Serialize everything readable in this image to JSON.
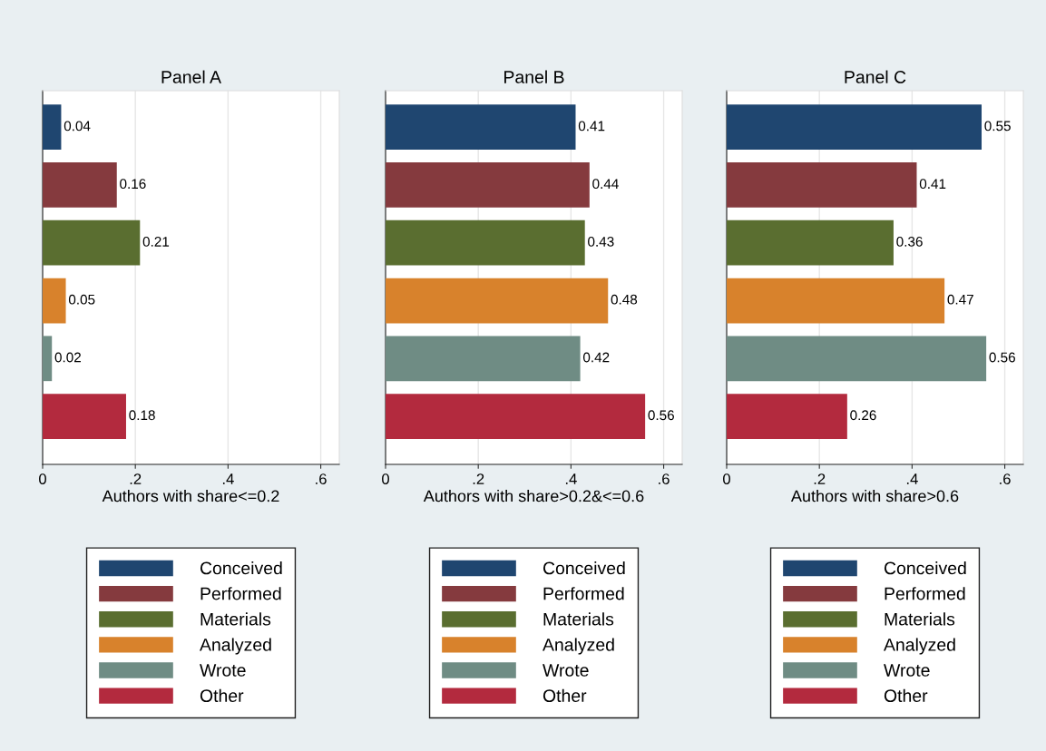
{
  "chart_data": [
    {
      "type": "bar",
      "title": "Panel A",
      "xlabel": "Authors with share<=0.2",
      "orientation": "horizontal",
      "categories": [
        null,
        null,
        null,
        null,
        null,
        null
      ],
      "series": [
        {
          "name": "Conceived",
          "color": "#1f4670",
          "values": [
            0.04,
            null,
            null,
            null,
            null,
            null
          ]
        },
        {
          "name": "Performed",
          "color": "#853a3e",
          "values": [
            null,
            0.16,
            null,
            null,
            null,
            null
          ]
        },
        {
          "name": "Materials",
          "color": "#5a6e30",
          "values": [
            null,
            null,
            0.21,
            null,
            null,
            null
          ]
        },
        {
          "name": "Analyzed",
          "color": "#d8822c",
          "values": [
            null,
            null,
            null,
            0.05,
            null,
            null
          ]
        },
        {
          "name": "Wrote",
          "color": "#6f8c84",
          "values": [
            null,
            null,
            null,
            null,
            0.02,
            null
          ]
        },
        {
          "name": "Other",
          "color": "#b32a3e",
          "values": [
            null,
            null,
            null,
            null,
            null,
            0.18
          ]
        }
      ],
      "xlim": [
        0,
        0.64
      ],
      "xticks": [
        0,
        {
          "value": 0.2,
          "label": ".2"
        },
        {
          "value": 0.4,
          "label": ".4"
        },
        {
          "value": 0.6,
          "label": ".6"
        }
      ],
      "data_labels": true,
      "grid": "x",
      "legend": "bottom",
      "tick_labels": "x"
    },
    {
      "type": "bar",
      "title": "Panel B",
      "xlabel": "Authors with share>0.2&<=0.6",
      "orientation": "horizontal",
      "categories": [
        null,
        null,
        null,
        null,
        null,
        null
      ],
      "series": [
        {
          "name": "Conceived",
          "color": "#1f4670",
          "values": [
            0.41,
            null,
            null,
            null,
            null,
            null
          ]
        },
        {
          "name": "Performed",
          "color": "#853a3e",
          "values": [
            null,
            0.44,
            null,
            null,
            null,
            null
          ]
        },
        {
          "name": "Materials",
          "color": "#5a6e30",
          "values": [
            null,
            null,
            0.43,
            null,
            null,
            null
          ]
        },
        {
          "name": "Analyzed",
          "color": "#d8822c",
          "values": [
            null,
            null,
            null,
            0.48,
            null,
            null
          ]
        },
        {
          "name": "Wrote",
          "color": "#6f8c84",
          "values": [
            null,
            null,
            null,
            null,
            0.42,
            null
          ]
        },
        {
          "name": "Other",
          "color": "#b32a3e",
          "values": [
            null,
            null,
            null,
            null,
            null,
            0.56
          ]
        }
      ],
      "xlim": [
        0,
        0.64
      ],
      "xticks": [
        0,
        {
          "value": 0.2,
          "label": ".2"
        },
        {
          "value": 0.4,
          "label": ".4"
        },
        {
          "value": 0.6,
          "label": ".6"
        }
      ],
      "data_labels": true,
      "grid": "x",
      "legend": "bottom",
      "tick_labels": "x"
    },
    {
      "type": "bar",
      "title": "Panel C",
      "xlabel": "Authors with share>0.6",
      "orientation": "horizontal",
      "categories": [
        null,
        null,
        null,
        null,
        null,
        null
      ],
      "series": [
        {
          "name": "Conceived",
          "color": "#1f4670",
          "values": [
            0.55,
            null,
            null,
            null,
            null,
            null
          ]
        },
        {
          "name": "Performed",
          "color": "#853a3e",
          "values": [
            null,
            0.41,
            null,
            null,
            null,
            null
          ]
        },
        {
          "name": "Materials",
          "color": "#5a6e30",
          "values": [
            null,
            null,
            0.36,
            null,
            null,
            null
          ]
        },
        {
          "name": "Analyzed",
          "color": "#d8822c",
          "values": [
            null,
            null,
            null,
            0.47,
            null,
            null
          ]
        },
        {
          "name": "Wrote",
          "color": "#6f8c84",
          "values": [
            null,
            null,
            null,
            null,
            0.56,
            null
          ]
        },
        {
          "name": "Other",
          "color": "#b32a3e",
          "values": [
            null,
            null,
            null,
            null,
            null,
            0.26
          ]
        }
      ],
      "xlim": [
        0,
        0.64
      ],
      "xticks": [
        0,
        {
          "value": 0.2,
          "label": ".2"
        },
        {
          "value": 0.4,
          "label": ".4"
        },
        {
          "value": 0.6,
          "label": ".6"
        }
      ],
      "data_labels": true,
      "grid": "x",
      "legend": "bottom",
      "tick_labels": "x"
    }
  ]
}
